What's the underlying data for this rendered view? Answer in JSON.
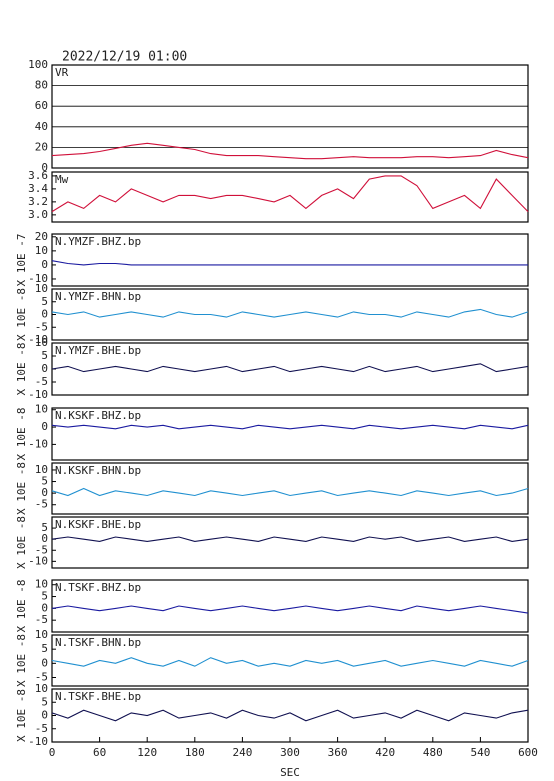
{
  "chart_data": {
    "type": "line",
    "title": "2022/12/19 01:00",
    "x_label": "SEC",
    "xlim": [
      0,
      600
    ],
    "xticks": [
      0,
      60,
      120,
      180,
      240,
      300,
      360,
      420,
      480,
      540,
      600
    ],
    "x": [
      0,
      20,
      40,
      60,
      80,
      100,
      120,
      140,
      160,
      180,
      200,
      220,
      240,
      260,
      280,
      300,
      320,
      340,
      360,
      380,
      400,
      420,
      440,
      460,
      480,
      500,
      520,
      540,
      560,
      580,
      600
    ],
    "panels": [
      {
        "name": "VR",
        "color": "#d0103a",
        "ylim": [
          0,
          100
        ],
        "yticks": [
          0,
          20,
          40,
          60,
          80,
          100
        ],
        "grid": true,
        "values": [
          12,
          13,
          14,
          16,
          19,
          22,
          24,
          22,
          20,
          18,
          14,
          12,
          12,
          12,
          11,
          10,
          9,
          9,
          10,
          11,
          10,
          10,
          10,
          11,
          11,
          10,
          11,
          12,
          17,
          13,
          10
        ]
      },
      {
        "name": "Mw",
        "color": "#d0103a",
        "ylim": [
          2.89,
          3.66
        ],
        "yticks": [
          {
            "value": 3.0,
            "label": "3.0"
          },
          3.2,
          3.4,
          3.6
        ],
        "grid": false,
        "values": [
          3.05,
          3.2,
          3.1,
          3.3,
          3.2,
          3.4,
          3.3,
          3.2,
          3.3,
          3.3,
          3.25,
          3.3,
          3.3,
          3.25,
          3.2,
          3.3,
          3.1,
          3.3,
          3.4,
          3.25,
          3.55,
          3.6,
          3.6,
          3.45,
          3.1,
          3.2,
          3.3,
          3.1,
          3.55,
          3.3,
          3.05
        ]
      },
      {
        "name": "N.YMZF.BHZ.bp",
        "axis_label": "X 10E -7",
        "color": "#1a1aa0",
        "ylim": [
          -15,
          22
        ],
        "yticks": [
          20,
          10,
          0,
          -10
        ],
        "grid": false,
        "values": [
          3,
          1,
          0,
          1,
          1,
          0,
          0,
          0,
          0,
          0,
          0,
          0,
          0,
          0,
          0,
          0,
          0,
          0,
          0,
          0,
          0,
          0,
          0,
          0,
          0,
          0,
          0,
          0,
          0,
          0,
          0
        ]
      },
      {
        "name": "N.YMZF.BHN.bp",
        "axis_label": "X 10E -8",
        "color": "#2090d0",
        "ylim": [
          -10,
          10
        ],
        "yticks": [
          10,
          5,
          0,
          -5,
          -10
        ],
        "grid": false,
        "values": [
          1,
          0,
          1,
          -1,
          0,
          1,
          0,
          -1,
          1,
          0,
          0,
          -1,
          1,
          0,
          -1,
          0,
          1,
          0,
          -1,
          1,
          0,
          0,
          -1,
          1,
          0,
          -1,
          1,
          2,
          0,
          -1,
          1
        ]
      },
      {
        "name": "N.YMZF.BHE.bp",
        "axis_label": "X 10E -8",
        "color": "#101050",
        "ylim": [
          -10,
          10
        ],
        "yticks": [
          10,
          5,
          0,
          -5,
          -10
        ],
        "grid": false,
        "values": [
          0,
          1,
          -1,
          0,
          1,
          0,
          -1,
          1,
          0,
          -1,
          0,
          1,
          -1,
          0,
          1,
          -1,
          0,
          1,
          0,
          -1,
          1,
          -1,
          0,
          1,
          -1,
          0,
          1,
          2,
          -1,
          0,
          1
        ]
      },
      {
        "name": "N.KSKF.BHZ.bp",
        "axis_label": "X 10E -8",
        "color": "#1a1aa0",
        "ylim": [
          -19,
          11
        ],
        "yticks": [
          10,
          0,
          -10
        ],
        "grid": false,
        "values": [
          1,
          0,
          1,
          0,
          -1,
          1,
          0,
          1,
          -1,
          0,
          1,
          0,
          -1,
          1,
          0,
          -1,
          0,
          1,
          0,
          -1,
          1,
          0,
          -1,
          0,
          1,
          0,
          -1,
          1,
          0,
          -1,
          1
        ]
      },
      {
        "name": "N.KSKF.BHN.bp",
        "axis_label": "X 10E -8",
        "color": "#2090d0",
        "ylim": [
          -9,
          13
        ],
        "yticks": [
          10,
          5,
          0,
          -5
        ],
        "grid": false,
        "values": [
          1,
          -1,
          2,
          -1,
          1,
          0,
          -1,
          1,
          0,
          -1,
          1,
          0,
          -1,
          0,
          1,
          -1,
          0,
          1,
          -1,
          0,
          1,
          0,
          -1,
          1,
          0,
          -1,
          0,
          1,
          -1,
          0,
          2
        ]
      },
      {
        "name": "N.KSKF.BHE.bp",
        "axis_label": "X 10E -8",
        "color": "#101050",
        "ylim": [
          -13,
          10
        ],
        "yticks": [
          5,
          0,
          -5,
          -10
        ],
        "grid": false,
        "values": [
          0,
          1,
          0,
          -1,
          1,
          0,
          -1,
          0,
          1,
          -1,
          0,
          1,
          0,
          -1,
          1,
          0,
          -1,
          1,
          0,
          -1,
          1,
          0,
          1,
          -1,
          0,
          1,
          -1,
          0,
          1,
          -1,
          0
        ]
      },
      {
        "name": "N.TSKF.BHZ.bp",
        "axis_label": "X 10E -8",
        "color": "#1a1aa0",
        "ylim": [
          -10,
          12
        ],
        "yticks": [
          10,
          5,
          0,
          -5
        ],
        "grid": false,
        "values": [
          0,
          1,
          0,
          -1,
          0,
          1,
          0,
          -1,
          1,
          0,
          -1,
          0,
          1,
          0,
          -1,
          0,
          1,
          0,
          -1,
          0,
          1,
          0,
          -1,
          1,
          0,
          -1,
          0,
          1,
          0,
          -1,
          -2
        ]
      },
      {
        "name": "N.TSKF.BHN.bp",
        "axis_label": "X 10E -8",
        "color": "#2090d0",
        "ylim": [
          -8,
          10
        ],
        "yticks": [
          10,
          5,
          0,
          -5
        ],
        "grid": false,
        "values": [
          1,
          0,
          -1,
          1,
          0,
          2,
          0,
          -1,
          1,
          -1,
          2,
          0,
          1,
          -1,
          0,
          -1,
          1,
          0,
          1,
          -1,
          0,
          1,
          -1,
          0,
          1,
          0,
          -1,
          1,
          0,
          -1,
          1
        ]
      },
      {
        "name": "N.TSKF.BHE.bp",
        "axis_label": "X 10E -8",
        "color": "#101050",
        "ylim": [
          -10,
          10
        ],
        "yticks": [
          10,
          5,
          0,
          -5,
          -10
        ],
        "grid": false,
        "values": [
          1,
          -1,
          2,
          0,
          -2,
          1,
          0,
          2,
          -1,
          0,
          1,
          -1,
          2,
          0,
          -1,
          1,
          -2,
          0,
          2,
          -1,
          0,
          1,
          -1,
          2,
          0,
          -2,
          1,
          0,
          -1,
          1,
          2
        ]
      }
    ]
  }
}
